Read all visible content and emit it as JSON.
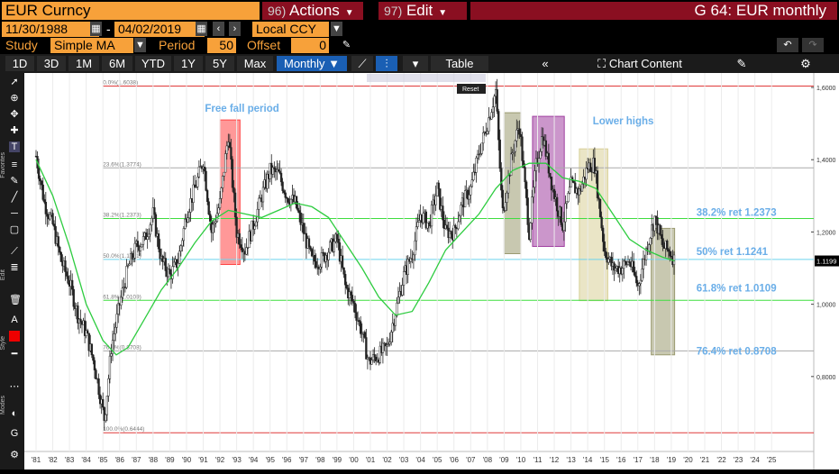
{
  "header": {
    "ticker": "EUR Curncy",
    "actions_num": "96)",
    "actions_label": "Actions",
    "edit_num": "97)",
    "edit_label": "Edit",
    "title": "G 64: EUR monthly"
  },
  "controls": {
    "start_date": "11/30/1988",
    "sep": "-",
    "end_date": "04/02/2019",
    "ccy": "Local CCY",
    "study_label": "Study",
    "study_value": "Simple MA",
    "period_label": "Period",
    "period_value": "50",
    "offset_label": "Offset",
    "offset_value": "0"
  },
  "periods": [
    "1D",
    "3D",
    "1M",
    "6M",
    "YTD",
    "1Y",
    "5Y",
    "Max"
  ],
  "frequency": "Monthly",
  "toolbar": {
    "table": "Table",
    "chart_content": "Chart Content",
    "reset": "Reset"
  },
  "side_labels": [
    "Favorites",
    "Edit",
    "Style",
    "Modes"
  ],
  "colors": {
    "orange": "#f7a13a",
    "maroon": "#8a0f21",
    "selected": "#1a5fb4",
    "ma": "#2ecc40",
    "fib_green": "#3fdd3f",
    "fib_cyan": "#6dd3ee",
    "fib_red": "#e03a3a",
    "text_blue": "#6aaee8"
  },
  "chart_data": {
    "type": "candlestick",
    "title": "",
    "x_ticks": [
      "'81",
      "'82",
      "'83",
      "'84",
      "'85",
      "'86",
      "'87",
      "'88",
      "'89",
      "'90",
      "'91",
      "'92",
      "'93",
      "'94",
      "'95",
      "'96",
      "'97",
      "'98",
      "'99",
      "'00",
      "'01",
      "'02",
      "'03",
      "'04",
      "'05",
      "'06",
      "'07",
      "'08",
      "'09",
      "'10",
      "'11",
      "'12",
      "'13",
      "'14",
      "'15",
      "'16",
      "'17",
      "'18",
      "'19",
      "'20",
      "'21",
      "'22",
      "'23",
      "'24",
      "'25"
    ],
    "y_ticks": [
      "1,6000",
      "1,4000",
      "1,2000",
      "1,0000",
      "0,8000"
    ],
    "y_range": [
      0.63,
      1.62
    ],
    "last_price": "1.1199",
    "fib_levels": [
      {
        "pct": "0.0%",
        "val": 1.6038,
        "label": "0.0%(1.6038)",
        "color": "red"
      },
      {
        "pct": "23.6%",
        "val": 1.3774,
        "label": "23.6%(1.3774)",
        "color": "gray"
      },
      {
        "pct": "38.2%",
        "val": 1.2373,
        "label": "38.2%(1.2373)",
        "color": "green"
      },
      {
        "pct": "50.0%",
        "val": 1.1241,
        "label": "50.0%(1.1241)",
        "color": "cyan"
      },
      {
        "pct": "61.8%",
        "val": 1.0109,
        "label": "61.8%(1.0109)",
        "color": "green"
      },
      {
        "pct": "76.4%",
        "val": 0.8708,
        "label": "76.4%(0.8708)",
        "color": "gray"
      },
      {
        "pct": "100.0%",
        "val": 0.6444,
        "label": "100.0%(0.6444)",
        "color": "red"
      }
    ],
    "annotations": [
      "Free fall period",
      "Lower highs",
      "38.2% ret 1.2373",
      "50% ret 1.1241",
      "61.8% ret 1.0109",
      "76.4% ret 0.8708"
    ],
    "price_path": [
      [
        1981.0,
        1.41
      ],
      [
        1981.5,
        1.28
      ],
      [
        1982.0,
        1.22
      ],
      [
        1982.5,
        1.12
      ],
      [
        1983.0,
        1.06
      ],
      [
        1983.5,
        0.97
      ],
      [
        1984.0,
        0.92
      ],
      [
        1984.5,
        0.83
      ],
      [
        1985.1,
        0.68
      ],
      [
        1985.5,
        0.88
      ],
      [
        1986.0,
        1.0
      ],
      [
        1986.5,
        1.1
      ],
      [
        1987.0,
        1.16
      ],
      [
        1987.5,
        1.18
      ],
      [
        1988.0,
        1.25
      ],
      [
        1988.5,
        1.12
      ],
      [
        1989.0,
        1.08
      ],
      [
        1989.5,
        1.12
      ],
      [
        1990.0,
        1.25
      ],
      [
        1990.5,
        1.32
      ],
      [
        1991.0,
        1.4
      ],
      [
        1991.5,
        1.2
      ],
      [
        1992.0,
        1.28
      ],
      [
        1992.5,
        1.47
      ],
      [
        1993.0,
        1.2
      ],
      [
        1993.5,
        1.15
      ],
      [
        1994.0,
        1.22
      ],
      [
        1994.5,
        1.3
      ],
      [
        1995.0,
        1.37
      ],
      [
        1995.5,
        1.36
      ],
      [
        1996.0,
        1.3
      ],
      [
        1996.5,
        1.28
      ],
      [
        1997.0,
        1.2
      ],
      [
        1997.5,
        1.12
      ],
      [
        1998.0,
        1.12
      ],
      [
        1998.5,
        1.15
      ],
      [
        1999.0,
        1.18
      ],
      [
        1999.5,
        1.05
      ],
      [
        2000.0,
        1.0
      ],
      [
        2000.5,
        0.92
      ],
      [
        2000.9,
        0.84
      ],
      [
        2001.5,
        0.86
      ],
      [
        2002.0,
        0.88
      ],
      [
        2002.5,
        0.98
      ],
      [
        2003.0,
        1.08
      ],
      [
        2003.5,
        1.14
      ],
      [
        2004.0,
        1.25
      ],
      [
        2004.5,
        1.22
      ],
      [
        2005.0,
        1.32
      ],
      [
        2005.5,
        1.2
      ],
      [
        2006.0,
        1.2
      ],
      [
        2006.5,
        1.28
      ],
      [
        2007.0,
        1.32
      ],
      [
        2007.5,
        1.42
      ],
      [
        2008.0,
        1.5
      ],
      [
        2008.5,
        1.59
      ],
      [
        2008.9,
        1.25
      ],
      [
        2009.5,
        1.42
      ],
      [
        2009.9,
        1.5
      ],
      [
        2010.5,
        1.2
      ],
      [
        2010.9,
        1.38
      ],
      [
        2011.3,
        1.47
      ],
      [
        2011.9,
        1.32
      ],
      [
        2012.5,
        1.22
      ],
      [
        2013.0,
        1.33
      ],
      [
        2013.5,
        1.31
      ],
      [
        2014.0,
        1.38
      ],
      [
        2014.4,
        1.39
      ],
      [
        2015.0,
        1.15
      ],
      [
        2015.5,
        1.1
      ],
      [
        2016.0,
        1.1
      ],
      [
        2016.5,
        1.12
      ],
      [
        2017.0,
        1.05
      ],
      [
        2017.5,
        1.15
      ],
      [
        2018.0,
        1.24
      ],
      [
        2018.5,
        1.16
      ],
      [
        2019.0,
        1.14
      ],
      [
        2019.2,
        1.12
      ]
    ],
    "ma_path": [
      [
        1981.0,
        1.4
      ],
      [
        1982.0,
        1.3
      ],
      [
        1983.0,
        1.16
      ],
      [
        1984.0,
        1.0
      ],
      [
        1985.0,
        0.9
      ],
      [
        1985.8,
        0.86
      ],
      [
        1986.5,
        0.88
      ],
      [
        1987.5,
        0.96
      ],
      [
        1988.5,
        1.04
      ],
      [
        1989.5,
        1.1
      ],
      [
        1990.5,
        1.17
      ],
      [
        1991.5,
        1.23
      ],
      [
        1992.5,
        1.26
      ],
      [
        1993.5,
        1.25
      ],
      [
        1994.5,
        1.24
      ],
      [
        1995.5,
        1.26
      ],
      [
        1996.5,
        1.28
      ],
      [
        1997.5,
        1.27
      ],
      [
        1998.5,
        1.24
      ],
      [
        1999.5,
        1.17
      ],
      [
        2000.5,
        1.1
      ],
      [
        2001.5,
        1.02
      ],
      [
        2002.5,
        0.97
      ],
      [
        2003.5,
        0.98
      ],
      [
        2004.5,
        1.06
      ],
      [
        2005.5,
        1.15
      ],
      [
        2006.5,
        1.2
      ],
      [
        2007.5,
        1.25
      ],
      [
        2008.5,
        1.32
      ],
      [
        2009.5,
        1.37
      ],
      [
        2010.5,
        1.39
      ],
      [
        2011.5,
        1.39
      ],
      [
        2012.5,
        1.35
      ],
      [
        2013.5,
        1.34
      ],
      [
        2014.5,
        1.32
      ],
      [
        2015.5,
        1.25
      ],
      [
        2016.5,
        1.18
      ],
      [
        2017.5,
        1.15
      ],
      [
        2018.5,
        1.13
      ],
      [
        2019.2,
        1.12
      ]
    ],
    "highlight_boxes": [
      {
        "x0": 1992.0,
        "x1": 1993.2,
        "y0": 1.11,
        "y1": 1.51,
        "color": "#f44"
      },
      {
        "x0": 2009.0,
        "x1": 2010.0,
        "y0": 1.14,
        "y1": 1.53,
        "color": "#9a9a70"
      },
      {
        "x0": 2010.7,
        "x1": 2012.6,
        "y0": 1.16,
        "y1": 1.52,
        "color": "#a040a0"
      },
      {
        "x0": 2013.5,
        "x1": 2015.2,
        "y0": 1.01,
        "y1": 1.43,
        "color": "#d8d098"
      },
      {
        "x0": 2017.8,
        "x1": 2019.2,
        "y0": 0.86,
        "y1": 1.21,
        "color": "#9a9a70"
      }
    ]
  }
}
